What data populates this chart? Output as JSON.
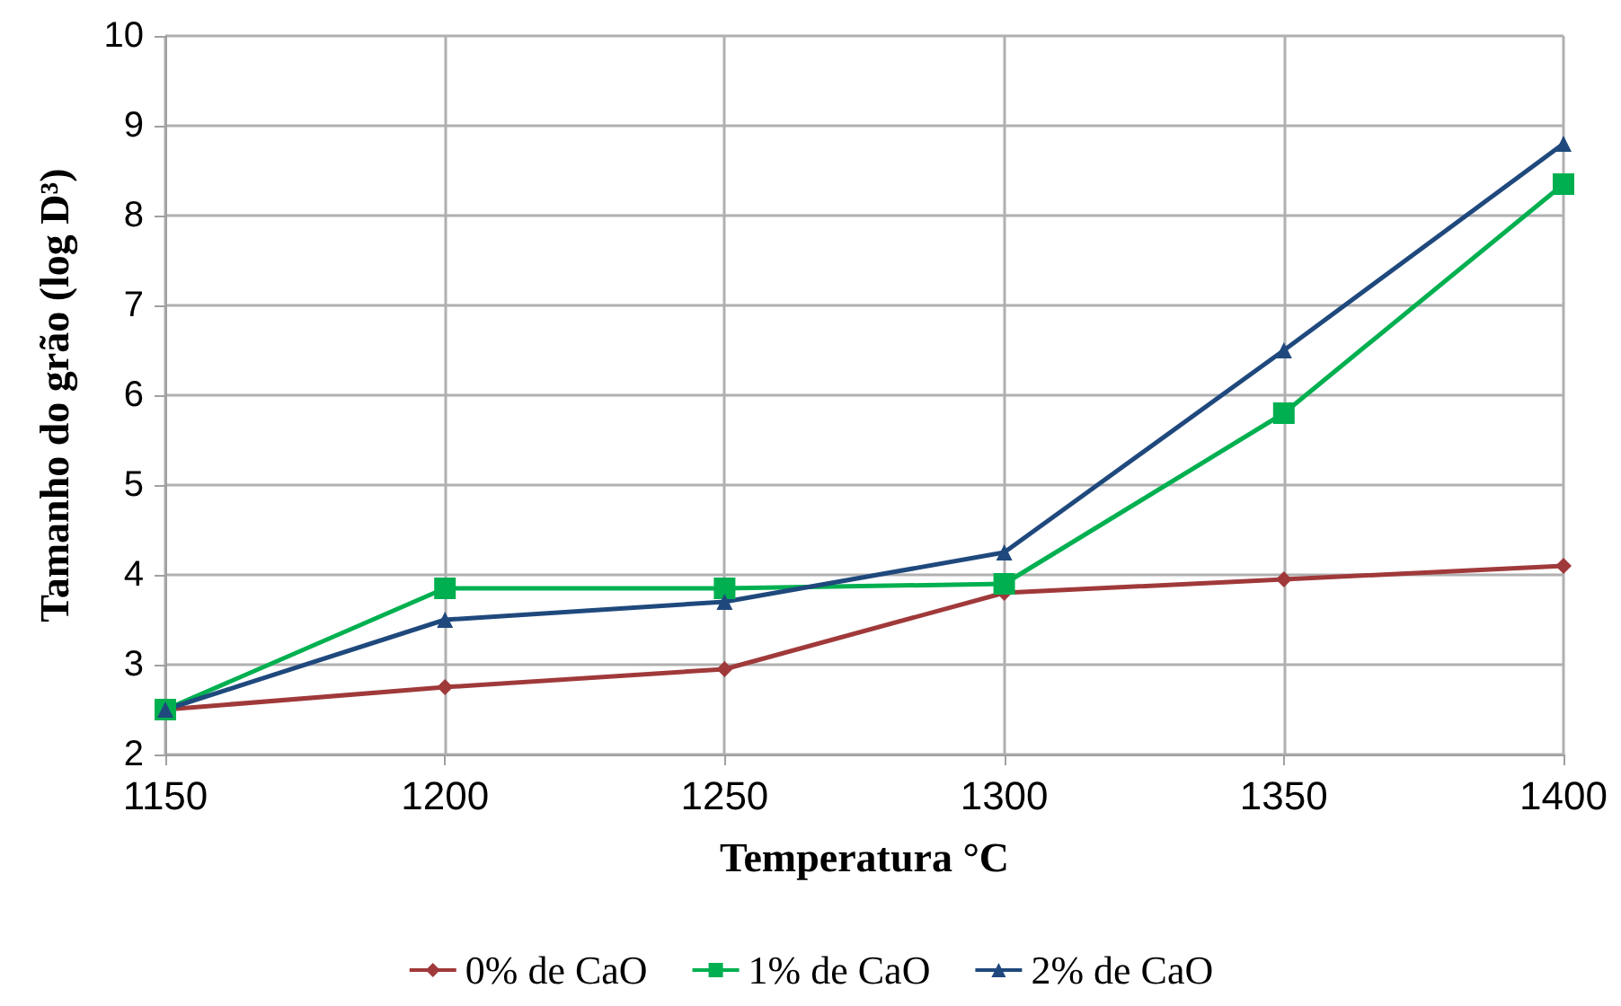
{
  "chart_data": {
    "type": "line",
    "xlabel": "Temperatura °C",
    "ylabel": "Tamanho do grão (log D³)",
    "x": [
      1150,
      1200,
      1250,
      1300,
      1350,
      1400
    ],
    "series": [
      {
        "name": "0% de CaO",
        "color": "#a0393a",
        "marker": "diamond",
        "values": [
          2.5,
          2.75,
          2.95,
          3.8,
          3.95,
          4.1
        ]
      },
      {
        "name": "1% de CaO",
        "color": "#00b050",
        "marker": "square",
        "values": [
          2.5,
          3.85,
          3.85,
          3.9,
          5.8,
          8.35
        ]
      },
      {
        "name": "2% de CaO",
        "color": "#1f497d",
        "marker": "triangle",
        "values": [
          2.5,
          3.5,
          3.7,
          4.25,
          6.5,
          8.8
        ]
      }
    ],
    "xlim": [
      1150,
      1400
    ],
    "xticks": [
      1150,
      1200,
      1250,
      1300,
      1350,
      1400
    ],
    "ylim": [
      2,
      10
    ],
    "yticks": [
      2,
      3,
      4,
      5,
      6,
      7,
      8,
      9,
      10
    ],
    "grid": true,
    "legend": "bottom",
    "line_style": "solid"
  }
}
